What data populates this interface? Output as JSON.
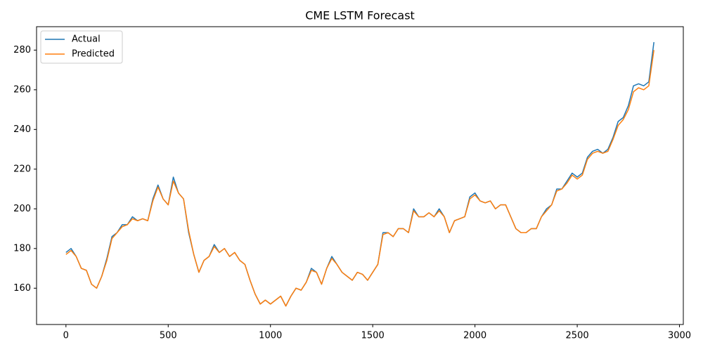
{
  "chart_data": {
    "type": "line",
    "title": "CME LSTM Forecast",
    "x": [
      0,
      25,
      50,
      75,
      100,
      125,
      150,
      175,
      200,
      225,
      250,
      275,
      300,
      325,
      350,
      375,
      400,
      425,
      450,
      475,
      500,
      525,
      550,
      575,
      600,
      625,
      650,
      675,
      700,
      725,
      750,
      775,
      800,
      825,
      850,
      875,
      900,
      925,
      950,
      975,
      1000,
      1025,
      1050,
      1075,
      1100,
      1125,
      1150,
      1175,
      1200,
      1225,
      1250,
      1275,
      1300,
      1325,
      1350,
      1375,
      1400,
      1425,
      1450,
      1475,
      1500,
      1525,
      1550,
      1575,
      1600,
      1625,
      1650,
      1675,
      1700,
      1725,
      1750,
      1775,
      1800,
      1825,
      1850,
      1875,
      1900,
      1925,
      1950,
      1975,
      2000,
      2025,
      2050,
      2075,
      2100,
      2125,
      2150,
      2175,
      2200,
      2225,
      2250,
      2275,
      2300,
      2325,
      2350,
      2375,
      2400,
      2425,
      2450,
      2475,
      2500,
      2525,
      2550,
      2575,
      2600,
      2625,
      2650,
      2675,
      2700,
      2725,
      2750,
      2775,
      2800,
      2825,
      2850,
      2875
    ],
    "series": [
      {
        "name": "Actual",
        "color": "#1f77b4",
        "values": [
          178,
          180,
          176,
          170,
          169,
          162,
          160,
          166,
          175,
          186,
          188,
          192,
          192,
          196,
          194,
          195,
          194,
          205,
          212,
          205,
          202,
          216,
          208,
          205,
          188,
          177,
          168,
          174,
          176,
          182,
          178,
          180,
          176,
          178,
          174,
          172,
          164,
          157,
          152,
          154,
          152,
          154,
          156,
          151,
          156,
          160,
          159,
          163,
          170,
          168,
          162,
          170,
          176,
          172,
          168,
          166,
          164,
          168,
          167,
          164,
          168,
          172,
          188,
          188,
          186,
          190,
          190,
          188,
          200,
          196,
          196,
          198,
          196,
          200,
          196,
          188,
          194,
          195,
          196,
          206,
          208,
          204,
          203,
          204,
          200,
          202,
          202,
          196,
          190,
          188,
          188,
          190,
          190,
          196,
          200,
          202,
          210,
          210,
          214,
          218,
          216,
          218,
          226,
          229,
          230,
          228,
          230,
          236,
          244,
          246,
          252,
          262,
          263,
          262,
          264,
          284
        ]
      },
      {
        "name": "Predicted",
        "color": "#ff7f0e",
        "values": [
          177,
          179,
          176,
          170,
          169,
          162,
          160,
          166,
          174,
          185,
          188,
          191,
          192,
          195,
          194,
          195,
          194,
          204,
          211,
          205,
          202,
          214,
          208,
          205,
          189,
          177,
          168,
          174,
          176,
          181,
          178,
          180,
          176,
          178,
          174,
          172,
          164,
          157,
          152,
          154,
          152,
          154,
          156,
          151,
          156,
          160,
          159,
          163,
          169,
          168,
          162,
          170,
          175,
          172,
          168,
          166,
          164,
          168,
          167,
          164,
          168,
          172,
          187,
          188,
          186,
          190,
          190,
          188,
          199,
          196,
          196,
          198,
          196,
          199,
          196,
          188,
          194,
          195,
          196,
          205,
          207,
          204,
          203,
          204,
          200,
          202,
          202,
          196,
          190,
          188,
          188,
          190,
          190,
          196,
          199,
          202,
          209,
          210,
          213,
          217,
          215,
          217,
          225,
          228,
          229,
          228,
          229,
          235,
          242,
          245,
          250,
          259,
          261,
          260,
          262,
          280
        ]
      }
    ],
    "xlim": [
      -143.75,
      3018.75
    ],
    "ylim": [
      141.7,
      291.8
    ],
    "xticks": [
      0,
      500,
      1000,
      1500,
      2000,
      2500,
      3000
    ],
    "yticks": [
      160,
      180,
      200,
      220,
      240,
      260,
      280
    ],
    "legend": "upper left"
  }
}
